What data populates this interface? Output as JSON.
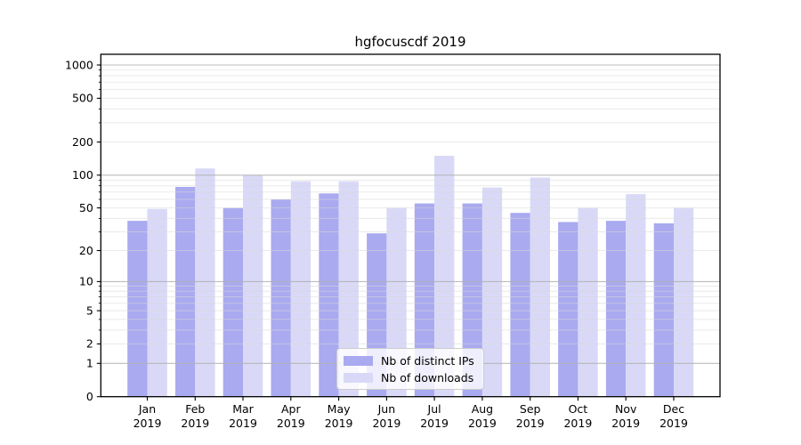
{
  "colors": {
    "bar_distinct_ips": "#aaaaf0",
    "bar_downloads": "#d9d9f7",
    "grid_major": "#b0b0b0",
    "grid_minor": "#d9d9d9",
    "axis": "#000000",
    "legend_border": "#cccccc",
    "legend_background": "rgba(255,255,255,0.8)",
    "text": "#000000",
    "background": "#ffffff"
  },
  "chart_data": {
    "type": "bar",
    "title": "hgfocuscdf 2019",
    "categories": [
      "Jan 2019",
      "Feb 2019",
      "Mar 2019",
      "Apr 2019",
      "May 2019",
      "Jun 2019",
      "Jul 2019",
      "Aug 2019",
      "Sep 2019",
      "Oct 2019",
      "Nov 2019",
      "Dec 2019"
    ],
    "series": [
      {
        "name": "Nb of distinct IPs",
        "color": "#aaaaf0",
        "values": [
          38,
          78,
          50,
          60,
          68,
          29,
          55,
          55,
          45,
          37,
          38,
          36
        ]
      },
      {
        "name": "Nb of downloads",
        "color": "#d9d9f7",
        "values": [
          49,
          115,
          100,
          88,
          88,
          50,
          150,
          77,
          95,
          50,
          67,
          50
        ]
      }
    ],
    "xlabel": "",
    "ylabel": "",
    "y_scale": "log10(1+x)",
    "ylim": [
      0,
      1250
    ],
    "y_ticks": [
      0,
      1,
      2,
      5,
      10,
      20,
      50,
      100,
      200,
      500,
      1000
    ],
    "grid": {
      "orientation": "horizontal",
      "major_values": [
        1,
        10,
        100,
        1000
      ],
      "minor_values": [
        2,
        3,
        4,
        5,
        6,
        7,
        8,
        9,
        20,
        30,
        40,
        50,
        60,
        70,
        80,
        90,
        200,
        300,
        400,
        500,
        600,
        700,
        800,
        900
      ]
    },
    "legend_position": "inside-bottom-center"
  },
  "legend": {
    "items": [
      {
        "label": "Nb of distinct IPs"
      },
      {
        "label": "Nb of downloads"
      }
    ]
  }
}
